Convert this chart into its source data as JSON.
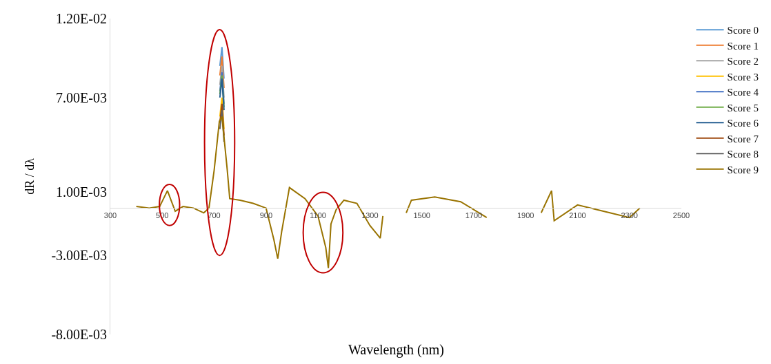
{
  "chart_data": {
    "type": "line",
    "xlabel": "Wavelength (nm)",
    "ylabel": "dR / dλ",
    "x": [
      400,
      450,
      490,
      520,
      550,
      580,
      620,
      660,
      680,
      700,
      720,
      730,
      750,
      760,
      800,
      850,
      900,
      930,
      945,
      960,
      990,
      1050,
      1100,
      1130,
      1140,
      1150,
      1170,
      1200,
      1250,
      1300,
      1340,
      1350,
      1400,
      1440,
      1460,
      1550,
      1650,
      1750,
      1850,
      1960,
      2000,
      2010,
      2100,
      2200,
      2300,
      2340
    ],
    "xlim": [
      300,
      2500
    ],
    "xticks": [
      300,
      500,
      700,
      900,
      1100,
      1300,
      1500,
      1700,
      1900,
      2100,
      2300,
      2500
    ],
    "ylim": [
      -0.008,
      0.012
    ],
    "yticks": [
      {
        "value": 0.012,
        "label": "1.20E-02"
      },
      {
        "value": 0.007,
        "label": "7.00E-03"
      },
      {
        "value": 0.001,
        "label": "1.00E-03"
      },
      {
        "value": -0.003,
        "label": "-3.00E-03"
      },
      {
        "value": -0.008,
        "label": "-8.00E-03"
      }
    ],
    "grid": false,
    "legend": "right",
    "marker": "none",
    "line_style": "solid",
    "series": [
      {
        "name": "Score 0",
        "color": "#5b9bd5",
        "x": [
          722,
          730,
          738
        ],
        "values": [
          0.009,
          0.0102,
          0.0082
        ]
      },
      {
        "name": "Score 1",
        "color": "#ed7d31",
        "x": [
          722,
          730,
          738
        ],
        "values": [
          0.0084,
          0.0096,
          0.0076
        ]
      },
      {
        "name": "Score 2",
        "color": "#a5a5a5",
        "x": [
          722,
          730,
          738
        ],
        "values": [
          0.0078,
          0.009,
          0.007
        ]
      },
      {
        "name": "Score 3",
        "color": "#ffc000",
        "x": [
          722,
          730,
          738
        ],
        "values": [
          0.0058,
          0.007,
          0.005
        ]
      },
      {
        "name": "Score 4",
        "color": "#4472c4",
        "x": [
          722,
          730,
          738
        ],
        "values": [
          0.0074,
          0.0086,
          0.0066
        ]
      },
      {
        "name": "Score 5",
        "color": "#70ad47",
        "x": [
          722,
          730,
          738
        ],
        "values": [
          0.0072,
          0.0084,
          0.0064
        ]
      },
      {
        "name": "Score 6",
        "color": "#255e91",
        "x": [
          722,
          730,
          738
        ],
        "values": [
          0.007,
          0.0082,
          0.0062
        ]
      },
      {
        "name": "Score 7",
        "color": "#9e480e",
        "x": [
          722,
          730,
          738
        ],
        "values": [
          0.0054,
          0.0066,
          0.0046
        ]
      },
      {
        "name": "Score 8",
        "color": "#636363",
        "x": [
          722,
          730,
          738
        ],
        "values": [
          0.005,
          0.0062,
          0.0042
        ]
      },
      {
        "name": "Score 9",
        "color": "#997300",
        "values": [
          0.0001,
          0,
          0.0001,
          0.0011,
          -0.0002,
          0.0001,
          0,
          -0.0003,
          0,
          0.0024,
          0.0055,
          0.0058,
          0.0025,
          0.0006,
          0.0005,
          0.0003,
          0,
          -0.002,
          -0.0032,
          -0.0015,
          0.0013,
          0.0006,
          -0.0005,
          -0.0025,
          -0.0038,
          -0.001,
          -0.0001,
          0.0005,
          0.0003,
          -0.0011,
          -0.0019,
          -0.0005,
          null,
          -0.0003,
          0.0005,
          0.0007,
          0.0004,
          -0.0006,
          null,
          -0.0003,
          0.0011,
          -0.0008,
          0.0002,
          -0.0002,
          -0.0006,
          0
        ]
      }
    ]
  }
}
